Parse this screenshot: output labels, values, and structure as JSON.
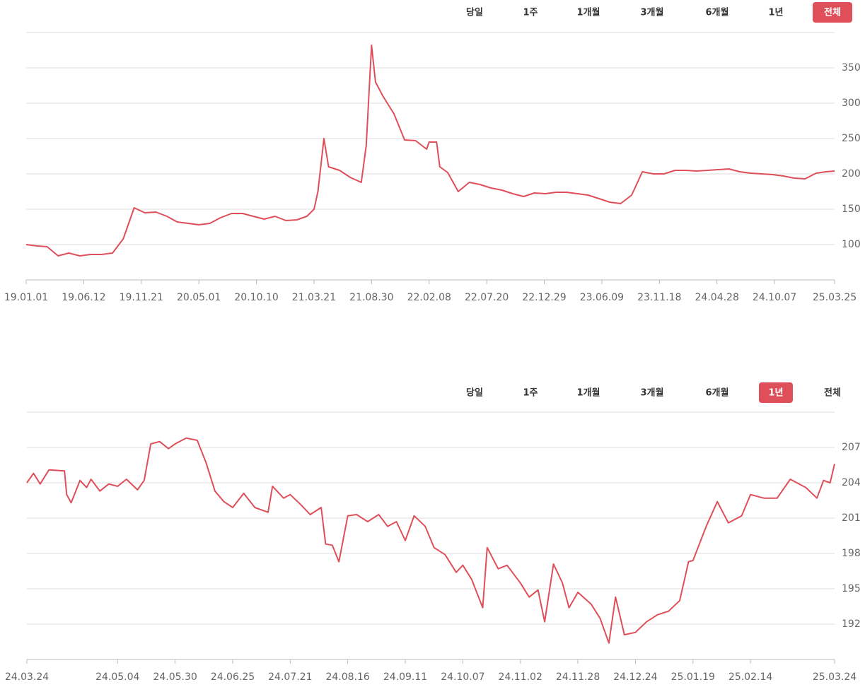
{
  "chart_data": [
    {
      "type": "line",
      "color": "#df4f5a",
      "range_buttons": [
        "당일",
        "1주",
        "1개월",
        "3개월",
        "6개월",
        "1년",
        "전체"
      ],
      "active_range": "전체",
      "xlim": [
        "19.01.01",
        "25.03.25"
      ],
      "xticks": [
        "19.01.01",
        "19.06.12",
        "19.11.21",
        "20.05.01",
        "20.10.10",
        "21.03.21",
        "21.08.30",
        "22.02.08",
        "22.07.20",
        "22.12.29",
        "23.06.09",
        "23.11.18",
        "24.04.28",
        "24.10.07",
        "25.03.25"
      ],
      "ylim": [
        50,
        400
      ],
      "yticks": [
        100,
        150,
        200,
        250,
        300,
        350
      ],
      "grid": true,
      "x": [
        "19.01.01",
        "19.02.01",
        "19.03.01",
        "19.04.01",
        "19.05.01",
        "19.06.01",
        "19.07.01",
        "19.08.01",
        "19.09.01",
        "19.10.01",
        "19.11.01",
        "19.12.01",
        "20.01.01",
        "20.02.01",
        "20.03.01",
        "20.04.01",
        "20.05.01",
        "20.06.01",
        "20.07.01",
        "20.08.01",
        "20.09.01",
        "20.10.01",
        "20.11.01",
        "20.12.01",
        "21.01.01",
        "21.02.01",
        "21.03.01",
        "21.03.21",
        "21.04.01",
        "21.04.18",
        "21.05.01",
        "21.06.01",
        "21.07.01",
        "21.08.01",
        "21.08.15",
        "21.08.30",
        "21.09.10",
        "21.10.01",
        "21.11.01",
        "21.12.01",
        "22.01.01",
        "22.02.01",
        "22.02.08",
        "22.03.01",
        "22.03.10",
        "22.04.01",
        "22.05.01",
        "22.06.01",
        "22.07.01",
        "22.08.01",
        "22.09.01",
        "22.10.01",
        "22.11.01",
        "22.12.01",
        "23.01.01",
        "23.02.01",
        "23.03.01",
        "23.04.01",
        "23.05.01",
        "23.06.01",
        "23.07.01",
        "23.08.01",
        "23.09.01",
        "23.10.01",
        "23.11.01",
        "23.12.01",
        "24.01.01",
        "24.02.01",
        "24.03.01",
        "24.04.01",
        "24.05.01",
        "24.06.01",
        "24.07.01",
        "24.08.01",
        "24.09.01",
        "24.10.01",
        "24.11.01",
        "24.12.01",
        "25.01.01",
        "25.02.01",
        "25.03.01",
        "25.03.25"
      ],
      "values": [
        100,
        98,
        97,
        84,
        88,
        84,
        86,
        86,
        88,
        108,
        152,
        145,
        146,
        140,
        132,
        130,
        128,
        130,
        138,
        144,
        144,
        140,
        136,
        140,
        134,
        135,
        140,
        150,
        175,
        250,
        210,
        205,
        195,
        188,
        240,
        382,
        330,
        310,
        285,
        248,
        247,
        235,
        245,
        245,
        210,
        202,
        175,
        188,
        185,
        180,
        177,
        172,
        168,
        173,
        172,
        174,
        174,
        172,
        170,
        165,
        160,
        158,
        170,
        203,
        200,
        200,
        205,
        205,
        204,
        205,
        206,
        207,
        203,
        201,
        200,
        199,
        197,
        194,
        193,
        201,
        203,
        204
      ]
    },
    {
      "type": "line",
      "color": "#df4f5a",
      "range_buttons": [
        "당일",
        "1주",
        "1개월",
        "3개월",
        "6개월",
        "1년",
        "전체"
      ],
      "active_range": "1년",
      "xlim": [
        "24.03.24",
        "25.03.24"
      ],
      "xticks": [
        "24.03.24",
        "24.05.04",
        "24.05.30",
        "24.06.25",
        "24.07.21",
        "24.08.16",
        "24.09.11",
        "24.10.07",
        "24.11.02",
        "24.11.28",
        "24.12.24",
        "25.01.19",
        "25.02.14",
        "25.03.24"
      ],
      "ylim": [
        189,
        210
      ],
      "yticks": [
        192,
        195,
        198,
        201,
        204,
        207
      ],
      "grid": true,
      "x": [
        "24.03.24",
        "24.03.27",
        "24.03.30",
        "24.04.03",
        "24.04.10",
        "24.04.11",
        "24.04.13",
        "24.04.17",
        "24.04.20",
        "24.04.22",
        "24.04.26",
        "24.04.30",
        "24.05.04",
        "24.05.08",
        "24.05.13",
        "24.05.16",
        "24.05.19",
        "24.05.23",
        "24.05.27",
        "24.05.30",
        "24.06.04",
        "24.06.09",
        "24.06.13",
        "24.06.17",
        "24.06.21",
        "24.06.25",
        "24.06.30",
        "24.07.05",
        "24.07.11",
        "24.07.13",
        "24.07.18",
        "24.07.21",
        "24.07.26",
        "24.07.30",
        "24.08.04",
        "24.08.06",
        "24.08.09",
        "24.08.12",
        "24.08.16",
        "24.08.20",
        "24.08.25",
        "24.08.30",
        "24.09.03",
        "24.09.07",
        "24.09.11",
        "24.09.15",
        "24.09.20",
        "24.09.24",
        "24.09.29",
        "24.10.04",
        "24.10.07",
        "24.10.11",
        "24.10.16",
        "24.10.18",
        "24.10.23",
        "24.10.27",
        "24.11.02",
        "24.11.06",
        "24.11.10",
        "24.11.13",
        "24.11.17",
        "24.11.21",
        "24.11.24",
        "24.11.28",
        "24.12.04",
        "24.12.08",
        "24.12.12",
        "24.12.15",
        "24.12.19",
        "24.12.24",
        "24.12.29",
        "25.01.03",
        "25.01.08",
        "25.01.13",
        "25.01.17",
        "25.01.19",
        "25.01.25",
        "25.01.30",
        "25.02.04",
        "25.02.10",
        "25.02.14",
        "25.02.20",
        "25.02.26",
        "25.03.04",
        "25.03.11",
        "25.03.16",
        "25.03.19",
        "25.03.22",
        "25.03.24"
      ],
      "values": [
        204,
        204.8,
        203.9,
        205.1,
        205,
        203,
        202.3,
        204.2,
        203.6,
        204.3,
        203.3,
        203.9,
        203.7,
        204.3,
        203.4,
        204.2,
        207.3,
        207.5,
        206.9,
        207.3,
        207.8,
        207.6,
        205.7,
        203.3,
        202.4,
        201.9,
        203.1,
        201.9,
        201.5,
        203.7,
        202.7,
        203,
        202.1,
        201.3,
        201.9,
        198.8,
        198.7,
        197.3,
        201.2,
        201.3,
        200.7,
        201.3,
        200.3,
        200.7,
        199.1,
        201.2,
        200.3,
        198.5,
        197.9,
        196.4,
        197,
        195.8,
        193.4,
        198.5,
        196.7,
        197,
        195.5,
        194.3,
        194.9,
        192.2,
        197.1,
        195.5,
        193.4,
        194.7,
        193.7,
        192.5,
        190.4,
        194.3,
        191.1,
        191.3,
        192.2,
        192.8,
        193.1,
        194,
        197.3,
        197.4,
        200.3,
        202.4,
        200.6,
        201.2,
        203,
        202.7,
        202.7,
        204.3,
        203.6,
        202.7,
        204.2,
        204,
        205.6
      ]
    }
  ]
}
